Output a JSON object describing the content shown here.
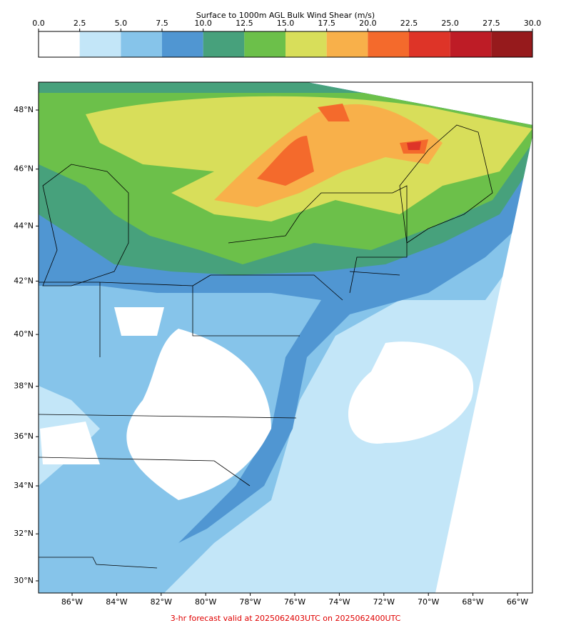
{
  "colorbar": {
    "title": "Surface to 1000m AGL Bulk Wind Shear (m/s)",
    "ticks": [
      {
        "value": 0,
        "label": "0.0"
      },
      2.5,
      {
        "value": 5,
        "label": "5.0"
      },
      7.5,
      {
        "value": 10,
        "label": "10.0"
      },
      12.5,
      {
        "value": 15,
        "label": "15.0"
      },
      17.5,
      {
        "value": 20,
        "label": "20.0"
      },
      22.5,
      {
        "value": 25,
        "label": "25.0"
      },
      27.5,
      {
        "value": 30,
        "label": "30.0"
      }
    ],
    "colors": [
      "#ffffff",
      "#c3e6f8",
      "#86c4ea",
      "#5096d2",
      "#47a17c",
      "#6cc04a",
      "#d8de5a",
      "#f8b04a",
      "#f46a2c",
      "#de3428",
      "#be1c26",
      "#961a1c"
    ]
  },
  "map": {
    "lat_ticks": [
      {
        "value": 48,
        "label": "48°N"
      },
      {
        "value": 46,
        "label": "46°N"
      },
      {
        "value": 44,
        "label": "44°N"
      },
      {
        "value": 42,
        "label": "42°N"
      },
      {
        "value": 40,
        "label": "40°N"
      },
      {
        "value": 38,
        "label": "38°N"
      },
      {
        "value": 36,
        "label": "36°N"
      },
      {
        "value": 34,
        "label": "34°N"
      },
      {
        "value": 32,
        "label": "32°N"
      },
      {
        "value": 30,
        "label": "30°N"
      }
    ],
    "lon_ticks": [
      {
        "value": -86,
        "label": "86°W"
      },
      {
        "value": -84,
        "label": "84°W"
      },
      {
        "value": -82,
        "label": "82°W"
      },
      {
        "value": -80,
        "label": "80°W"
      },
      {
        "value": -78,
        "label": "78°W"
      },
      {
        "value": -76,
        "label": "76°W"
      },
      {
        "value": -74,
        "label": "74°W"
      },
      {
        "value": -72,
        "label": "72°W"
      },
      {
        "value": -70,
        "label": "70°W"
      },
      {
        "value": -68,
        "label": "68°W"
      },
      {
        "value": -66,
        "label": "66°W"
      }
    ]
  },
  "footer": "3-hr forecast valid at 2025062403UTC on 2025062400UTC"
}
